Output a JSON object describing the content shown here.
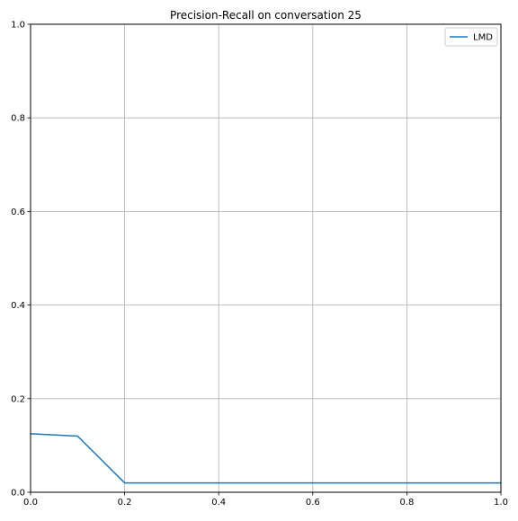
{
  "chart_data": {
    "type": "line",
    "title": "Precision-Recall on conversation 25",
    "xlabel": "",
    "ylabel": "",
    "xlim": [
      0,
      1
    ],
    "ylim": [
      0,
      1
    ],
    "x_ticks": [
      "0.0",
      "0.2",
      "0.4",
      "0.6",
      "0.8",
      "1.0"
    ],
    "y_ticks": [
      "0.0",
      "0.2",
      "0.4",
      "0.6",
      "0.8",
      "1.0"
    ],
    "grid": true,
    "legend_position": "top-right",
    "series": [
      {
        "name": "LMD",
        "color": "#1f77b4",
        "x": [
          0.0,
          0.1,
          0.2,
          0.3,
          0.4,
          0.5,
          0.6,
          0.7,
          0.8,
          0.9,
          1.0
        ],
        "y": [
          0.125,
          0.12,
          0.02,
          0.02,
          0.02,
          0.02,
          0.02,
          0.02,
          0.02,
          0.02,
          0.02
        ]
      }
    ]
  }
}
